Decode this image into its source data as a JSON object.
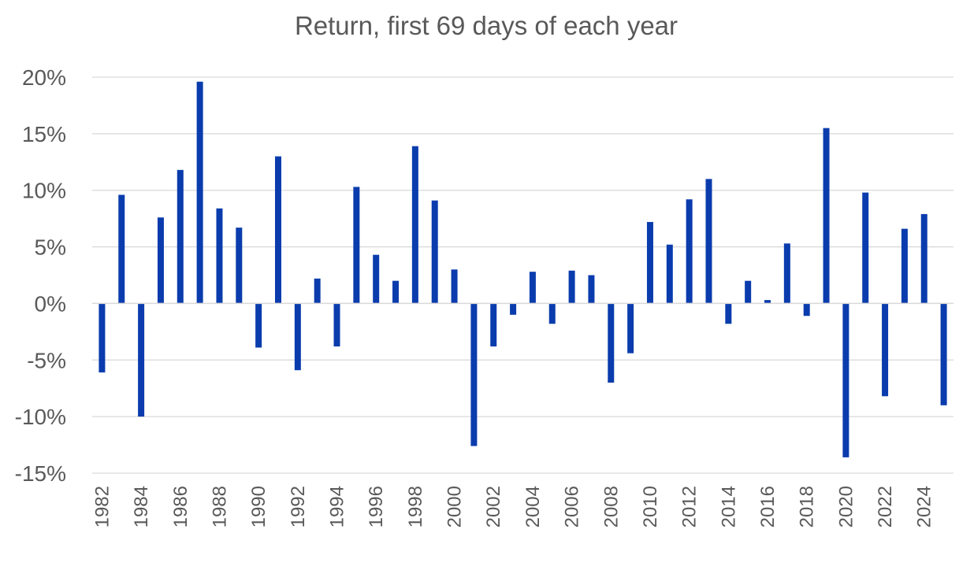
{
  "chart_data": {
    "type": "bar",
    "title": "Return, first 69 days of each year",
    "xlabel": "",
    "ylabel": "",
    "ylim": [
      -15,
      20
    ],
    "y_ticks": [
      20,
      15,
      10,
      5,
      0,
      -5,
      -10,
      -15
    ],
    "y_tick_labels": [
      "20%",
      "15%",
      "10%",
      "5%",
      "0%",
      "-5%",
      "-10%",
      "-15%"
    ],
    "grid": true,
    "legend": "none",
    "bar_color": "#0a3cad",
    "x_tick_labels": [
      "1982",
      "1984",
      "1986",
      "1988",
      "1990",
      "1992",
      "1994",
      "1996",
      "1998",
      "2000",
      "2002",
      "2004",
      "2006",
      "2008",
      "2010",
      "2012",
      "2014",
      "2016",
      "2018",
      "2020",
      "2022",
      "2024"
    ],
    "categories": [
      "1982",
      "1983",
      "1984",
      "1985",
      "1986",
      "1987",
      "1988",
      "1989",
      "1990",
      "1991",
      "1992",
      "1993",
      "1994",
      "1995",
      "1996",
      "1997",
      "1998",
      "1999",
      "2000",
      "2001",
      "2002",
      "2003",
      "2004",
      "2005",
      "2006",
      "2007",
      "2008",
      "2009",
      "2010",
      "2011",
      "2012",
      "2013",
      "2014",
      "2015",
      "2016",
      "2017",
      "2018",
      "2019",
      "2020",
      "2021",
      "2022",
      "2023",
      "2024",
      "2025"
    ],
    "values": [
      -6.1,
      9.6,
      -10.0,
      7.6,
      11.8,
      19.6,
      8.4,
      6.7,
      -3.9,
      13.0,
      -5.9,
      2.2,
      -3.8,
      10.3,
      4.3,
      2.0,
      13.9,
      9.1,
      3.0,
      -12.6,
      -3.8,
      -1.0,
      2.8,
      -1.8,
      2.9,
      2.5,
      -7.0,
      -4.4,
      7.2,
      5.2,
      9.2,
      11.0,
      -1.8,
      2.0,
      0.3,
      5.3,
      -1.1,
      15.5,
      -13.6,
      9.8,
      -8.2,
      6.6,
      7.9,
      -9.0
    ]
  }
}
